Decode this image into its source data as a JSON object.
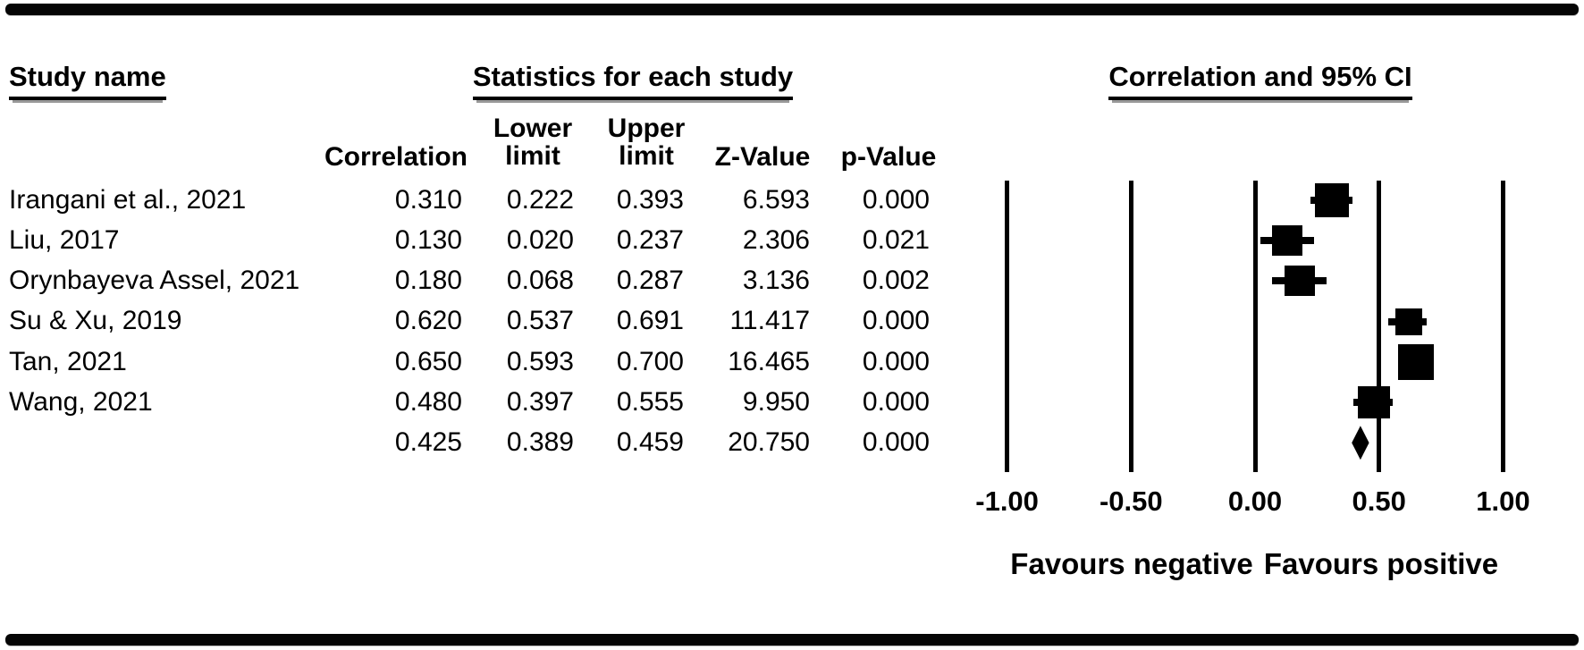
{
  "colors": {
    "foreground": "#000000",
    "background": "#ffffff"
  },
  "headers": {
    "study_group": "Study name",
    "stats_group": "Statistics for each study",
    "plot_group": "Correlation and 95% CI",
    "col_correlation": "Correlation",
    "col_lower": "Lower\nlimit",
    "col_upper": "Upper\nlimit",
    "col_z": "Z-Value",
    "col_p": "p-Value"
  },
  "chart_data": {
    "type": "forest",
    "title": "Correlation and 95% CI",
    "x_axis": {
      "range": [
        -1.0,
        1.0
      ],
      "ticks": [
        -1.0,
        -0.5,
        0.0,
        0.5,
        1.0
      ],
      "tick_labels": [
        "-1.00",
        "-0.50",
        "0.00",
        "0.50",
        "1.00"
      ]
    },
    "footer_labels": [
      "Favours negative",
      "Favours positive"
    ],
    "rows": [
      {
        "name": "Irangani et al., 2021",
        "correlation": "0.310",
        "lower": "0.222",
        "upper": "0.393",
        "z": "6.593",
        "p": "0.000",
        "marker": "square",
        "marker_size_px": 38
      },
      {
        "name": "Liu, 2017",
        "correlation": "0.130",
        "lower": "0.020",
        "upper": "0.237",
        "z": "2.306",
        "p": "0.021",
        "marker": "square",
        "marker_size_px": 34
      },
      {
        "name": "Orynbayeva Assel, 2021",
        "correlation": "0.180",
        "lower": "0.068",
        "upper": "0.287",
        "z": "3.136",
        "p": "0.002",
        "marker": "square",
        "marker_size_px": 34
      },
      {
        "name": "Su & Xu, 2019",
        "correlation": "0.620",
        "lower": "0.537",
        "upper": "0.691",
        "z": "11.417",
        "p": "0.000",
        "marker": "square",
        "marker_size_px": 30
      },
      {
        "name": "Tan, 2021",
        "correlation": "0.650",
        "lower": "0.593",
        "upper": "0.700",
        "z": "16.465",
        "p": "0.000",
        "marker": "square",
        "marker_size_px": 40
      },
      {
        "name": "Wang, 2021",
        "correlation": "0.480",
        "lower": "0.397",
        "upper": "0.555",
        "z": "9.950",
        "p": "0.000",
        "marker": "square",
        "marker_size_px": 36
      },
      {
        "name": "",
        "correlation": "0.425",
        "lower": "0.389",
        "upper": "0.459",
        "z": "20.750",
        "p": "0.000",
        "marker": "diamond",
        "marker_size_px": 38
      }
    ]
  }
}
